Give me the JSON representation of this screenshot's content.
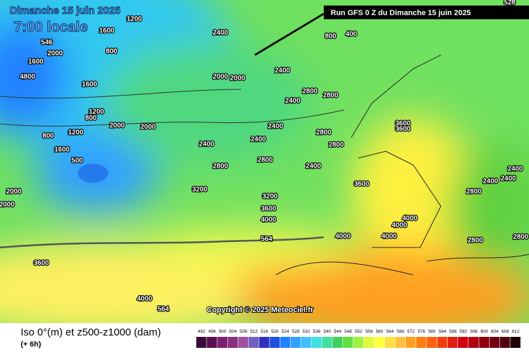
{
  "header": {
    "title": "Dimanche 15 juin 2025",
    "time": "7:00 locale",
    "run": "Run GFS 0 Z du Dimanche 15 juin 2025"
  },
  "map": {
    "contour_labels": [
      "1200",
      "1600",
      "2400",
      "800",
      "400",
      "2000",
      "1600",
      "800",
      "4800",
      "2400",
      "2000",
      "2000",
      "2800",
      "2800",
      "2400",
      "1600",
      "1200",
      "800",
      "2000",
      "2000",
      "1200",
      "800",
      "2400",
      "2400",
      "2800",
      "2800",
      "3600",
      "3600",
      "1600",
      "500",
      "2400",
      "2800",
      "2800",
      "2400",
      "3600",
      "3200",
      "3200",
      "3600",
      "4000",
      "4000",
      "4000",
      "4000",
      "4000",
      "2000",
      "2000",
      "2400",
      "2400",
      "2400",
      "2800",
      "2800",
      "2800",
      "4000",
      "564",
      "564",
      "528",
      "546",
      "3600"
    ],
    "copyright": "Copyright © 2025 Meteociel.fr"
  },
  "legend": {
    "title": "Iso 0°(m) et z500-z1000 (dam)",
    "lead": "(+ 6h)",
    "ticks": [
      492,
      496,
      500,
      504,
      508,
      512,
      516,
      520,
      524,
      528,
      532,
      536,
      540,
      544,
      548,
      552,
      556,
      560,
      564,
      568,
      572,
      576,
      580,
      584,
      588,
      592,
      596,
      600,
      604,
      608,
      612
    ],
    "colors": [
      "#3a0a3a",
      "#5a1050",
      "#7a2070",
      "#8a3080",
      "#a050a0",
      "#7060c0",
      "#3030c0",
      "#2050e0",
      "#2080ff",
      "#30a0ff",
      "#40c0ff",
      "#40e0e0",
      "#40e0a0",
      "#40d060",
      "#60e040",
      "#a0f040",
      "#e0f840",
      "#ffff40",
      "#ffe040",
      "#ffc040",
      "#ffa020",
      "#ff8010",
      "#ff6010",
      "#f04010",
      "#e02010",
      "#d00010",
      "#b00010",
      "#900010",
      "#700010",
      "#500010",
      "#200008"
    ]
  }
}
